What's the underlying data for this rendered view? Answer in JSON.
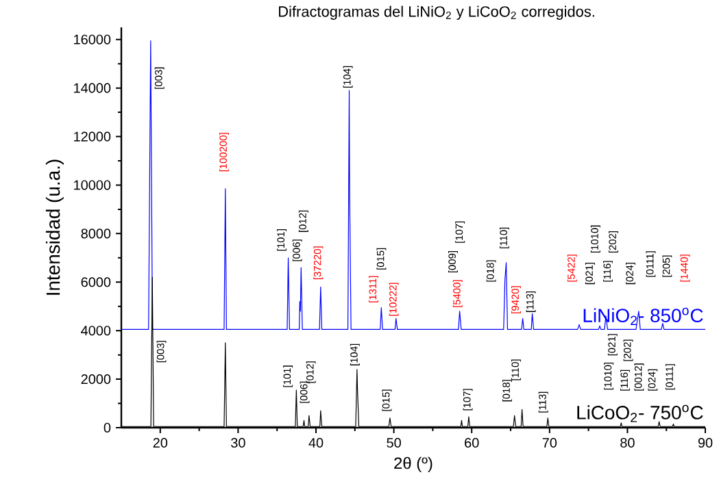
{
  "chart_data": {
    "type": "line",
    "title": "Difractogramas del LiNiO$_{2}$ y LiCoO$_{2}$ corregidos.",
    "xlabel": "2θ (º)",
    "ylabel": "Intensidad (u.a.)",
    "xlim": [
      15,
      90
    ],
    "ylim": [
      0,
      16500
    ],
    "xticks": [
      20,
      30,
      40,
      50,
      60,
      70,
      80,
      90
    ],
    "yticks": [
      0,
      2000,
      4000,
      6000,
      8000,
      10000,
      12000,
      14000,
      16000
    ],
    "marker": "none",
    "series": [
      {
        "name": "LiNiO$_{2}$- 850$^{o}$C",
        "color": "#0000ff",
        "x": [
          15,
          18.5,
          18.77,
          19.0,
          28.2,
          28.36,
          28.5,
          36.3,
          36.44,
          36.6,
          37.85,
          37.92,
          38.0,
          38.09,
          38.25,
          40.45,
          40.6,
          40.75,
          44.1,
          44.27,
          44.32,
          44.5,
          48.25,
          48.39,
          48.55,
          50.15,
          50.28,
          50.45,
          58.3,
          58.45,
          58.65,
          64.1,
          64.27,
          64.43,
          64.6,
          66.4,
          66.55,
          66.7,
          67.65,
          67.78,
          67.95,
          73.6,
          73.8,
          74.0,
          76.3,
          76.44,
          76.6,
          77.05,
          77.23,
          77.45,
          81.1,
          81.28,
          81.45,
          81.65,
          84.35,
          84.53,
          84.7,
          90
        ],
        "values": [
          4050,
          4050,
          15950,
          4050,
          4050,
          9850,
          4050,
          4050,
          7000,
          4050,
          4050,
          5200,
          4800,
          6600,
          4050,
          4050,
          5800,
          4050,
          4050,
          13900,
          9800,
          4050,
          4050,
          4950,
          4050,
          4050,
          4500,
          4050,
          4050,
          4800,
          4050,
          4050,
          6100,
          6800,
          4050,
          4050,
          4500,
          4050,
          4050,
          4700,
          4050,
          4050,
          4250,
          4050,
          4050,
          4200,
          4050,
          4050,
          4600,
          4050,
          4050,
          4450,
          4800,
          4050,
          4050,
          4300,
          4050,
          4050
        ]
      },
      {
        "name": "LiCoO$_{2}$- 750$^{o}$C",
        "color": "#000000",
        "x": [
          15,
          18.8,
          18.98,
          19.15,
          28.2,
          28.36,
          28.5,
          37.35,
          37.48,
          37.6,
          38.35,
          38.46,
          38.55,
          39.0,
          39.11,
          39.25,
          40.5,
          40.6,
          40.75,
          45.1,
          45.27,
          45.32,
          45.5,
          49.35,
          49.5,
          49.65,
          58.6,
          58.7,
          58.8,
          59.5,
          59.62,
          59.75,
          65.35,
          65.5,
          65.65,
          66.35,
          66.46,
          66.6,
          69.65,
          69.78,
          69.9,
          79.1,
          79.2,
          79.3,
          83.95,
          84.07,
          84.2,
          85.8,
          85.9,
          86.0,
          90
        ],
        "values": [
          50,
          50,
          6200,
          50,
          50,
          3500,
          50,
          50,
          1550,
          50,
          50,
          300,
          50,
          50,
          500,
          50,
          50,
          700,
          50,
          50,
          2400,
          1700,
          50,
          50,
          400,
          50,
          50,
          300,
          50,
          50,
          450,
          50,
          50,
          500,
          50,
          50,
          750,
          50,
          50,
          400,
          50,
          50,
          200,
          50,
          50,
          250,
          50,
          50,
          150,
          50,
          50
        ]
      }
    ],
    "annotations": [
      "[003]",
      "[100200]",
      "[101]",
      "[006]",
      "[012]",
      "[37220]",
      "[104]",
      "[1311]",
      "[015]",
      "[10222]",
      "[009]",
      "[5400]",
      "[107]",
      "[018]",
      "[110]",
      "[9420]",
      "[113]",
      "[5422]",
      "[021]",
      "[1010]",
      "[116]",
      "[202]",
      "[024]",
      "[0111]",
      "[205]",
      "[1440]",
      "[003]",
      "[101]",
      "[006]",
      "[012]",
      "[104]",
      "[015]",
      "[107]",
      "[018]",
      "[110]",
      "[113]",
      "[1010]",
      "[021]",
      "[116]",
      "[202]",
      "[0012]",
      "[024]",
      "[0111]"
    ]
  }
}
